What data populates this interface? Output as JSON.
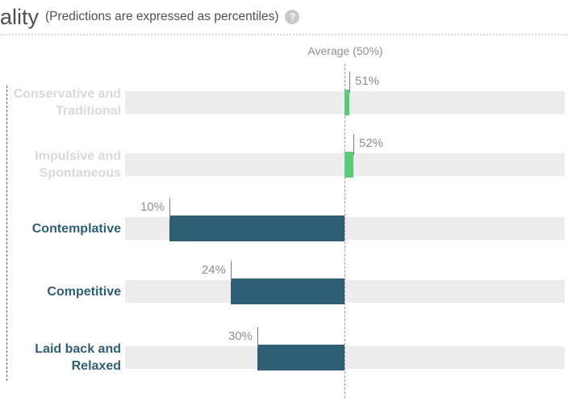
{
  "header": {
    "title_fragment": "ality",
    "subtitle": "(Predictions are expressed as percentiles)",
    "help_icon_glyph": "?"
  },
  "chart_data": {
    "type": "bar",
    "orientation": "horizontal",
    "xlim": [
      0,
      100
    ],
    "average_line": {
      "label": "Average (50%)",
      "value": 50
    },
    "categories": [
      "Conservative and Traditional",
      "Impulsive and Spontaneous",
      "Contemplative",
      "Competitive",
      "Laid back and Relaxed"
    ],
    "values": [
      51,
      52,
      10,
      24,
      30
    ],
    "value_labels": [
      "51%",
      "52%",
      "10%",
      "24%",
      "30%"
    ],
    "muted_categories": [
      true,
      true,
      false,
      false,
      false
    ],
    "colors": {
      "above_average_bar": "#5dc878",
      "below_average_bar": "#2e5f74",
      "track": "#ececec",
      "muted_label": "#d9d9d9",
      "emphasis_label": "#2e5f74",
      "value_label_text": "#8f8f8f"
    }
  }
}
